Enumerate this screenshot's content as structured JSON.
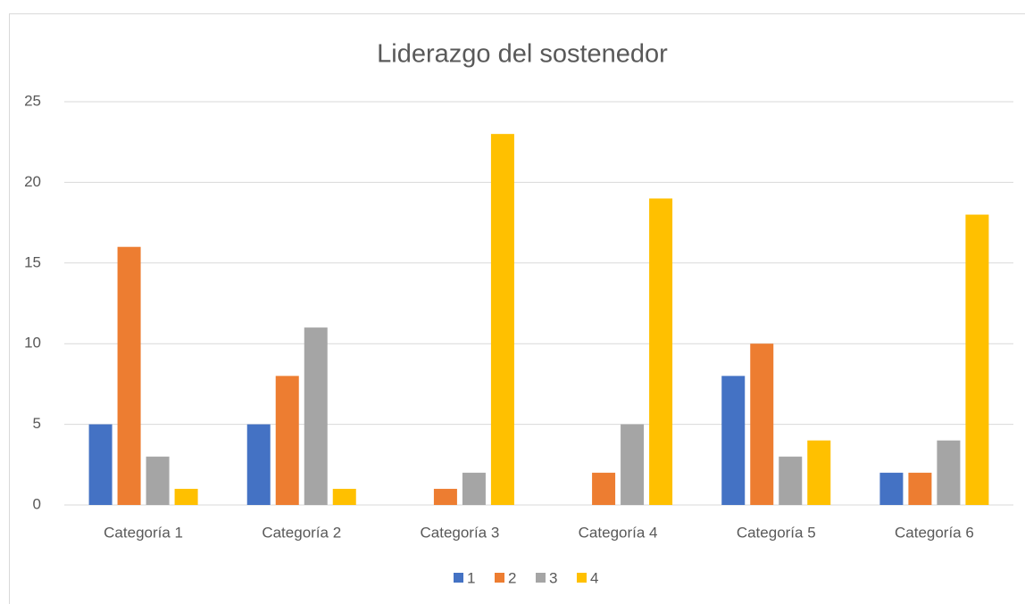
{
  "chart_data": {
    "type": "bar",
    "title": "Liderazgo del sostenedor",
    "categories": [
      "Categoría 1",
      "Categoría 2",
      "Categoría 3",
      "Categoría 4",
      "Categoría 5",
      "Categoría 6"
    ],
    "series": [
      {
        "name": "1",
        "color": "#4472c4",
        "values": [
          5,
          5,
          0,
          0,
          8,
          2
        ]
      },
      {
        "name": "2",
        "color": "#ed7d31",
        "values": [
          16,
          8,
          1,
          2,
          10,
          2
        ]
      },
      {
        "name": "3",
        "color": "#a5a5a5",
        "values": [
          3,
          11,
          2,
          5,
          3,
          4
        ]
      },
      {
        "name": "4",
        "color": "#ffc000",
        "values": [
          1,
          1,
          23,
          19,
          4,
          18
        ]
      }
    ],
    "ylim": [
      0,
      25
    ],
    "yticks": [
      0,
      5,
      10,
      15,
      20,
      25
    ],
    "grid": true,
    "legend": "bottom"
  }
}
